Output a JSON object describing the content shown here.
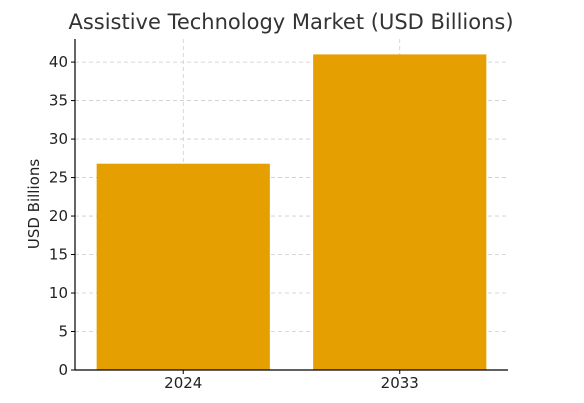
{
  "chart_data": {
    "type": "bar",
    "title": "Assistive Technology Market (USD Billions)",
    "xlabel": "",
    "ylabel": "USD Billions",
    "categories": [
      "2024",
      "2033"
    ],
    "values": [
      26.8,
      41.0
    ],
    "ylim": [
      0,
      43
    ],
    "yticks": [
      0,
      5,
      10,
      15,
      20,
      25,
      30,
      35,
      40
    ],
    "grid": true,
    "bar_color": "#E69F00"
  }
}
